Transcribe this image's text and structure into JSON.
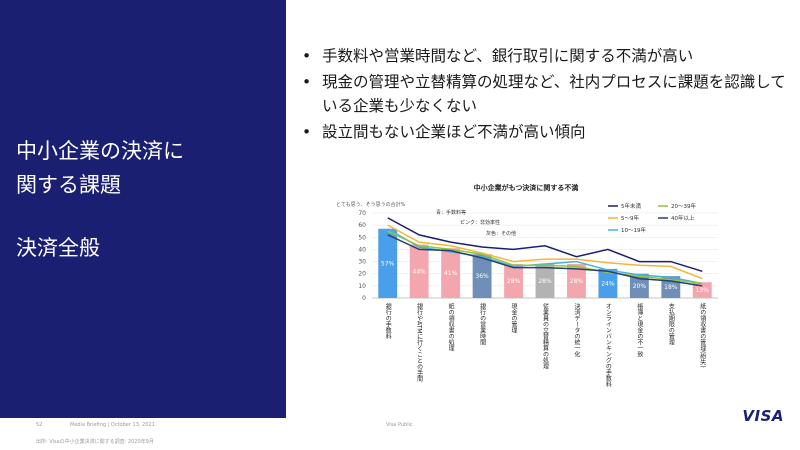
{
  "left": {
    "title_line1": "中小企業の決済に",
    "title_line2": "関する課題",
    "subtitle": "決済全般"
  },
  "bullets": [
    "手数料や営業時間など、銀行取引に関する不満が高い",
    "現金の管理や立替精算の処理など、社内プロセスに課題を認識している企業も少なくない",
    "設立間もない企業ほど不満が高い傾向"
  ],
  "footer": {
    "page_number": "52",
    "briefing": "Media Briefing | October 13, 2021",
    "classification": "Visa Public",
    "source": "出所: Visaの中小企業決済に関する調査: 2020年9月",
    "logo": "VISA"
  },
  "chart_data": {
    "type": "bar",
    "title": "中小企業がもつ決済に関する不満",
    "ylabel": "とても思う、そう思うの合計%",
    "ylim": [
      0,
      70
    ],
    "yticks": [
      0,
      10,
      20,
      30,
      40,
      50,
      60,
      70
    ],
    "categories": [
      "銀行の手数料",
      "銀行やATMに行くことの手間",
      "紙の領収書の処理",
      "銀行の営業時間",
      "現金の管理",
      "従業員の立替精算の処理",
      "決済データの統一化",
      "オンラインバンキングの手数料",
      "帳簿と現金の不一致",
      "支払期限の管理",
      "紙の領収書の管理(紛失)"
    ],
    "bar_values": [
      57,
      44,
      41,
      36,
      28,
      28,
      28,
      24,
      20,
      18,
      13
    ],
    "bar_labels": [
      "57%",
      "44%",
      "41%",
      "36%",
      "28%",
      "28%",
      "28%",
      "24%",
      "20%",
      "18%",
      "13%"
    ],
    "bar_colors": [
      "#4a9fea",
      "#f4a6ae",
      "#f4a6ae",
      "#6f8fb8",
      "#f4a6ae",
      "#b3b3b3",
      "#f4a6ae",
      "#4a9fea",
      "#6f8fb8",
      "#6f8fb8",
      "#f4a6ae"
    ],
    "bar_legend": [
      {
        "text": "青：手数料等",
        "color": "#4a9fea"
      },
      {
        "text": "ピンク：非効率性",
        "color": "#f4a6ae"
      },
      {
        "text": "灰色：その他",
        "color": "#b3b3b3"
      }
    ],
    "series": [
      {
        "name": "5年未満",
        "color": "#1a1f71",
        "values": [
          66,
          52,
          46,
          42,
          40,
          43,
          34,
          40,
          30,
          30,
          22
        ]
      },
      {
        "name": "5～9年",
        "color": "#f2b63c",
        "values": [
          60,
          46,
          43,
          37,
          30,
          32,
          32,
          29,
          27,
          26,
          16
        ]
      },
      {
        "name": "10～19年",
        "color": "#4aaee0",
        "values": [
          57,
          42,
          38,
          34,
          26,
          28,
          30,
          23,
          19,
          17,
          12
        ]
      },
      {
        "name": "20～39年",
        "color": "#8dc63f",
        "values": [
          55,
          43,
          40,
          36,
          27,
          27,
          26,
          21,
          18,
          15,
          12
        ]
      },
      {
        "name": "40年以上",
        "color": "#2a3f6f",
        "values": [
          52,
          40,
          39,
          33,
          25,
          25,
          24,
          22,
          16,
          14,
          10
        ]
      }
    ]
  }
}
